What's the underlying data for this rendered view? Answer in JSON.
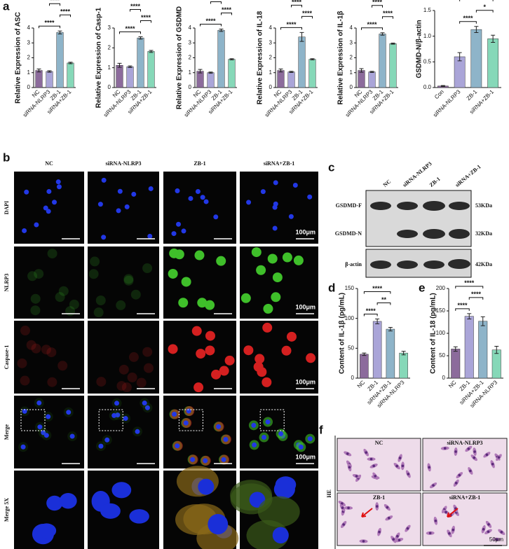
{
  "panel_letters": [
    "a",
    "b",
    "c",
    "d",
    "e",
    "f"
  ],
  "chart_data": [
    {
      "type": "bar",
      "ylabel": "Relative Expression of ASC",
      "categories": [
        "NC",
        "siRNA-NLRP3",
        "ZB-1",
        "siRNA+ZB-1"
      ],
      "values": [
        1.15,
        1.08,
        3.7,
        1.65
      ],
      "errors": [
        0.1,
        0.05,
        0.1,
        0.05
      ],
      "colors": [
        "#8c6b9c",
        "#aaa5d8",
        "#8eb4c9",
        "#86d8b8"
      ],
      "ylim": [
        0,
        4
      ],
      "yticks": [
        0,
        1,
        2,
        3,
        4
      ],
      "annotations": [
        {
          "label": "****",
          "between": [
            "NC",
            "ZB-1"
          ]
        },
        {
          "label": "****",
          "between": [
            "ZB-1",
            "siRNA+ZB-1"
          ]
        },
        {
          "label": "****",
          "between": [
            "siRNA-NLRP3",
            "ZB-1"
          ]
        }
      ]
    },
    {
      "type": "bar",
      "ylabel": "Relative Expression of Casp-1",
      "categories": [
        "NC",
        "siRNA-NLRP3",
        "ZB-1",
        "siRNA+ZB-1"
      ],
      "values": [
        1.12,
        1.05,
        2.5,
        1.82
      ],
      "errors": [
        0.1,
        0.04,
        0.06,
        0.05
      ],
      "colors": [
        "#8c6b9c",
        "#aaa5d8",
        "#8eb4c9",
        "#86d8b8"
      ],
      "ylim": [
        0,
        3
      ],
      "yticks": [
        0,
        1,
        2,
        3
      ],
      "annotations": [
        {
          "label": "****",
          "between": [
            "NC",
            "ZB-1"
          ]
        },
        {
          "label": "****",
          "between": [
            "ZB-1",
            "siRNA+ZB-1"
          ]
        },
        {
          "label": "****",
          "between": [
            "siRNA-NLRP3",
            "ZB-1"
          ]
        }
      ]
    },
    {
      "type": "bar",
      "ylabel": "Relative Expression of GSDMD",
      "categories": [
        "NC",
        "siRNA-NLRP3",
        "ZB-1",
        "siRNA+ZB-1"
      ],
      "values": [
        1.1,
        1.0,
        3.85,
        1.9
      ],
      "errors": [
        0.12,
        0.04,
        0.08,
        0.04
      ],
      "colors": [
        "#8c6b9c",
        "#aaa5d8",
        "#8eb4c9",
        "#86d8b8"
      ],
      "ylim": [
        0,
        4
      ],
      "yticks": [
        0,
        1,
        2,
        3,
        4
      ],
      "annotations": [
        {
          "label": "****",
          "between": [
            "NC",
            "ZB-1"
          ]
        },
        {
          "label": "****",
          "between": [
            "ZB-1",
            "siRNA+ZB-1"
          ]
        },
        {
          "label": "****",
          "between": [
            "siRNA-NLRP3",
            "ZB-1"
          ]
        }
      ]
    },
    {
      "type": "bar",
      "ylabel": "Relative Expression of IL-18",
      "categories": [
        "NC",
        "siRNA-NLRP3",
        "ZB-1",
        "siRNA+ZB-1"
      ],
      "values": [
        1.15,
        1.05,
        3.4,
        1.9
      ],
      "errors": [
        0.1,
        0.04,
        0.3,
        0.04
      ],
      "colors": [
        "#8c6b9c",
        "#aaa5d8",
        "#8eb4c9",
        "#86d8b8"
      ],
      "ylim": [
        0,
        4
      ],
      "yticks": [
        0,
        1,
        2,
        3,
        4
      ],
      "annotations": [
        {
          "label": "****",
          "between": [
            "NC",
            "ZB-1"
          ]
        },
        {
          "label": "****",
          "between": [
            "ZB-1",
            "siRNA+ZB-1"
          ]
        },
        {
          "label": "****",
          "between": [
            "siRNA-NLRP3",
            "ZB-1"
          ]
        }
      ]
    },
    {
      "type": "bar",
      "ylabel": "Relative Expression of IL-1β",
      "categories": [
        "NC",
        "siRNA-NLRP3",
        "ZB-1",
        "siRNA+ZB-1"
      ],
      "values": [
        1.15,
        1.05,
        3.6,
        2.95
      ],
      "errors": [
        0.12,
        0.04,
        0.08,
        0.04
      ],
      "colors": [
        "#8c6b9c",
        "#aaa5d8",
        "#8eb4c9",
        "#86d8b8"
      ],
      "ylim": [
        0,
        4
      ],
      "yticks": [
        0,
        1,
        2,
        3,
        4
      ],
      "annotations": [
        {
          "label": "****",
          "between": [
            "NC",
            "ZB-1"
          ]
        },
        {
          "label": "****",
          "between": [
            "ZB-1",
            "siRNA+ZB-1"
          ]
        },
        {
          "label": "****",
          "between": [
            "siRNA-NLRP3",
            "ZB-1"
          ]
        }
      ]
    },
    {
      "type": "bar",
      "ylabel": "GSDMD-N/β-actin",
      "categories": [
        "Con",
        "siRNA-NLRP3",
        "ZB-1",
        "siRNA+ZB-1"
      ],
      "values": [
        0.03,
        0.6,
        1.13,
        0.95
      ],
      "errors": [
        0.01,
        0.08,
        0.06,
        0.07
      ],
      "colors": [
        "#8c6b9c",
        "#aaa5d8",
        "#8eb4c9",
        "#86d8b8"
      ],
      "ylim": [
        0,
        1.5
      ],
      "yticks": [
        {
          "value": 0,
          "label": "0.0"
        },
        0.5,
        {
          "value": 1,
          "label": "1.0"
        },
        1.5
      ],
      "annotations": [
        {
          "label": "****",
          "between": [
            "siRNA-NLRP3",
            "ZB-1"
          ]
        },
        {
          "label": "*",
          "between": [
            "ZB-1",
            "siRNA+ZB-1"
          ]
        },
        {
          "label": "**",
          "between": [
            "siRNA-NLRP3",
            "siRNA+ZB-1"
          ]
        }
      ]
    },
    {
      "type": "bar",
      "ylabel": "Content of IL-1β (pg/mL)",
      "categories": [
        "NC",
        "ZB-1",
        "siRNA+ZB-1",
        "siRNA-NLRP3"
      ],
      "values": [
        40,
        95,
        82,
        42
      ],
      "errors": [
        2,
        4,
        3,
        3
      ],
      "colors": [
        "#8c6b9c",
        "#aaa5d8",
        "#8eb4c9",
        "#86d8b8"
      ],
      "ylim": [
        0,
        150
      ],
      "yticks": [
        0,
        50,
        100,
        150
      ],
      "annotations": [
        {
          "label": "****",
          "between": [
            "NC",
            "ZB-1"
          ]
        },
        {
          "label": "**",
          "between": [
            "ZB-1",
            "siRNA+ZB-1"
          ]
        },
        {
          "label": "****",
          "between": [
            "NC",
            "siRNA+ZB-1"
          ]
        }
      ]
    },
    {
      "type": "bar",
      "ylabel": "Content of IL-18 (pg/mL)",
      "categories": [
        "NC",
        "ZB-1",
        "siRNA+ZB-1",
        "siRNA-NLRP3"
      ],
      "values": [
        65,
        138,
        127,
        63
      ],
      "errors": [
        5,
        6,
        10,
        8
      ],
      "colors": [
        "#8c6b9c",
        "#aaa5d8",
        "#8eb4c9",
        "#86d8b8"
      ],
      "ylim": [
        0,
        200
      ],
      "yticks": [
        0,
        50,
        100,
        150,
        200
      ],
      "annotations": [
        {
          "label": "****",
          "between": [
            "NC",
            "ZB-1"
          ]
        },
        {
          "label": "****",
          "between": [
            "ZB-1",
            "siRNA+ZB-1"
          ]
        },
        {
          "label": "****",
          "between": [
            "NC",
            "siRNA+ZB-1"
          ]
        }
      ]
    }
  ],
  "microscopy": {
    "columns": [
      "NC",
      "siRNA-NLRP3",
      "ZB-1",
      "siRNA+ZB-1"
    ],
    "rows": [
      "DAPI",
      "NLRP3",
      "Caspase-1",
      "Merge",
      "Merge 5X"
    ],
    "scale_bar": "100μm"
  },
  "western_blot": {
    "lanes": [
      "NC",
      "siRNA-NLRP3",
      "ZB-1",
      "siRNA+ZB-1"
    ],
    "bands": [
      "GSDMD-F",
      "GSDMD-N",
      "β-actin"
    ],
    "sizes": [
      "53KDa",
      "32KDa",
      "42KDa"
    ]
  },
  "he_stain": {
    "panels": [
      "NC",
      "siRNA-NLRP3",
      "ZB-1",
      "siRNA+ZB-1"
    ],
    "label": "HE",
    "scale_bar": "50μm"
  }
}
